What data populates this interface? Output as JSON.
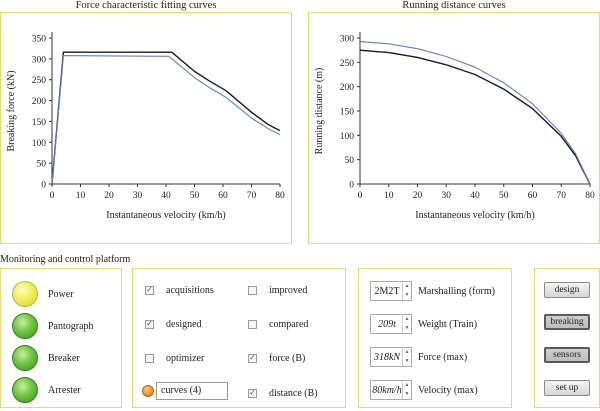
{
  "charts": [
    {
      "title": "Force characteristic fitting curves",
      "xlabel": "Instantaneous velocity (km/h)",
      "ylabel": "Breaking force (kN)",
      "xticks": [
        "0",
        "10",
        "20",
        "30",
        "40",
        "50",
        "60",
        "70",
        "80"
      ],
      "yticks": [
        "0",
        "50",
        "100",
        "150",
        "200",
        "250",
        "300",
        "350"
      ]
    },
    {
      "title": "Running distance curves",
      "xlabel": "Instantaneous velocity (km/h)",
      "ylabel": "Running distance (m)",
      "xticks": [
        "0",
        "10",
        "20",
        "30",
        "40",
        "50",
        "60",
        "70",
        "80"
      ],
      "yticks": [
        "0",
        "50",
        "100",
        "150",
        "200",
        "250",
        "300"
      ]
    }
  ],
  "chart_data": [
    {
      "type": "line",
      "title": "Force characteristic fitting curves",
      "xlabel": "Instantaneous velocity (km/h)",
      "ylabel": "Breaking force (kN)",
      "xlim": [
        0,
        80
      ],
      "ylim": [
        0,
        350
      ],
      "series": [
        {
          "color": "#1a1a1a",
          "x": [
            0,
            4,
            42,
            50,
            55,
            61,
            70,
            76,
            80
          ],
          "y": [
            0,
            316,
            316,
            270,
            248,
            224,
            172,
            142,
            128
          ]
        },
        {
          "color": "#5b7fc8",
          "x": [
            0,
            4,
            41,
            50,
            55,
            61,
            70,
            76,
            80
          ],
          "y": [
            0,
            308,
            306,
            255,
            232,
            208,
            158,
            132,
            118
          ]
        }
      ]
    },
    {
      "type": "line",
      "title": "Running distance curves",
      "xlabel": "Instantaneous velocity (km/h)",
      "ylabel": "Running distance (m)",
      "xlim": [
        0,
        80
      ],
      "ylim": [
        0,
        300
      ],
      "series": [
        {
          "color": "#1a1a1a",
          "x": [
            0,
            10,
            20,
            30,
            40,
            50,
            60,
            70,
            75,
            80
          ],
          "y": [
            275,
            270,
            260,
            245,
            225,
            195,
            155,
            98,
            58,
            0
          ]
        },
        {
          "color": "#5b7fc8",
          "x": [
            0,
            10,
            20,
            30,
            40,
            50,
            60,
            70,
            75,
            80
          ],
          "y": [
            293,
            288,
            278,
            262,
            240,
            208,
            165,
            104,
            62,
            0
          ]
        }
      ]
    }
  ],
  "platform": {
    "title": "Monitoring and control platform",
    "indicators": [
      {
        "label": "Power",
        "color": "yellow"
      },
      {
        "label": "Pantograph",
        "color": "green"
      },
      {
        "label": "Breaker",
        "color": "green"
      },
      {
        "label": "Arrester",
        "color": "green"
      }
    ],
    "checkboxes_left": [
      {
        "label": "acquisitions",
        "checked": true
      },
      {
        "label": "designed",
        "checked": true
      },
      {
        "label": "optimizer",
        "checked": false
      }
    ],
    "checkboxes_right": [
      {
        "label": "improved",
        "checked": false
      },
      {
        "label": "compared",
        "checked": false
      },
      {
        "label": "force (B)",
        "checked": true
      },
      {
        "label": "distance (B)",
        "checked": true
      }
    ],
    "curves_value": "curves (4)",
    "params": [
      {
        "value": "2M2T",
        "label": "Marshalling (form)"
      },
      {
        "value": "209t",
        "label": "Weight (Train)"
      },
      {
        "value": "318kN",
        "label": "Force (max)"
      },
      {
        "value": "80km/h",
        "label": "Velocity (max)"
      }
    ],
    "buttons": [
      {
        "label": "design",
        "pressed": false
      },
      {
        "label": "breaking",
        "pressed": true
      },
      {
        "label": "sensors",
        "pressed": true
      },
      {
        "label": "set up",
        "pressed": false
      }
    ]
  }
}
